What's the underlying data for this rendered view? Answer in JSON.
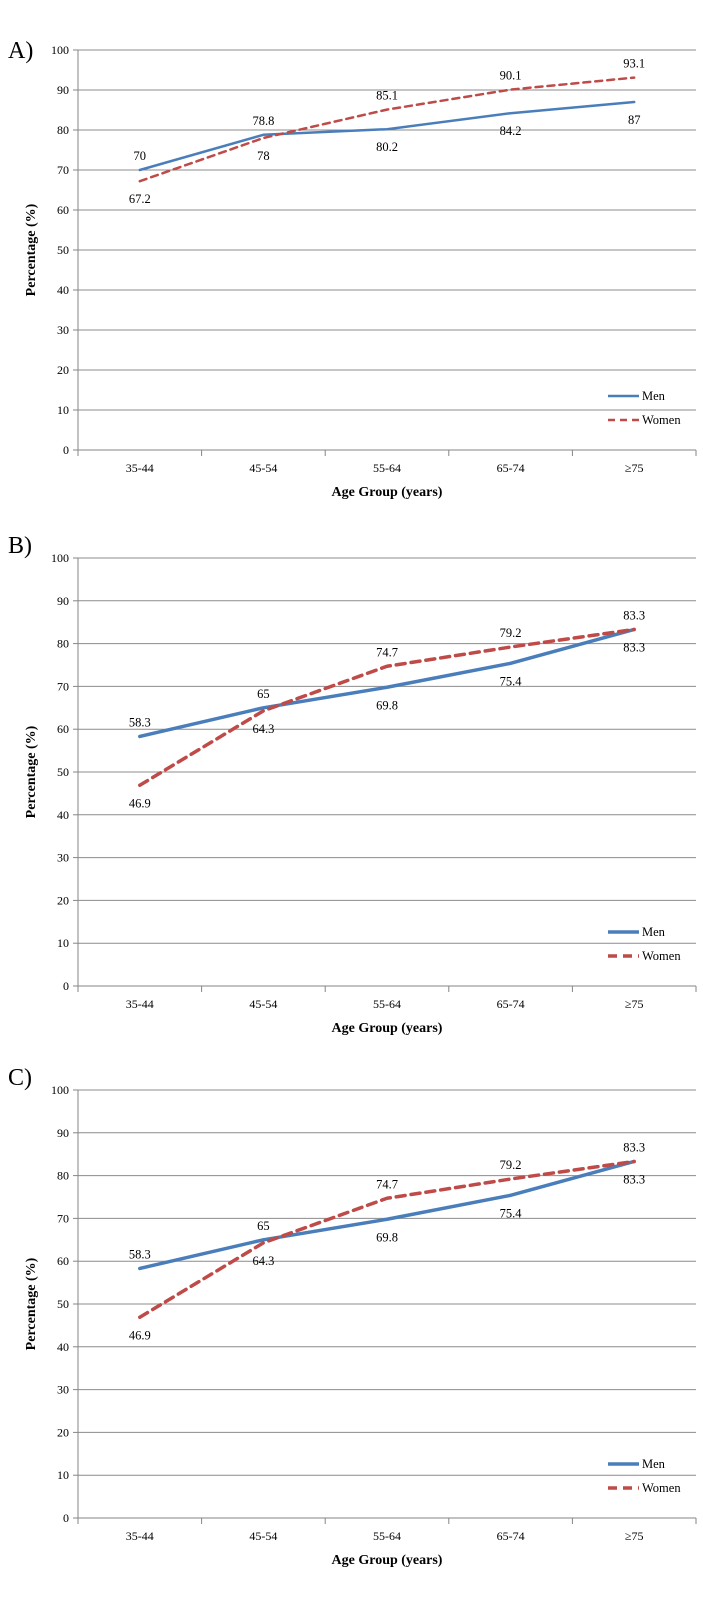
{
  "chart_data": [
    {
      "type": "line",
      "panel_label": "A)",
      "categories": [
        "35-44",
        "45-54",
        "55-64",
        "65-74",
        "≥75"
      ],
      "series": [
        {
          "name": "Men",
          "values": [
            70,
            78.8,
            80.2,
            84.2,
            87
          ],
          "color": "#4a7ebb",
          "style": "solid"
        },
        {
          "name": "Women",
          "values": [
            67.2,
            78,
            85.1,
            90.1,
            93.1
          ],
          "color": "#be4b48",
          "style": "dashed"
        }
      ],
      "labels": [
        "70",
        "78.8",
        "80.2",
        "84.2",
        "87",
        "67.2",
        "78",
        "85.1",
        "90.1",
        "93.1"
      ],
      "ylabel": "Percentage (%)",
      "xlabel": "Age Group (years)",
      "ylim": [
        0,
        100
      ],
      "yticks": [
        "0",
        "10",
        "20",
        "30",
        "40",
        "50",
        "60",
        "70",
        "80",
        "90",
        "100"
      ],
      "grid": true,
      "legend": "bottom-right"
    },
    {
      "type": "line",
      "panel_label": "B)",
      "categories": [
        "35-44",
        "45-54",
        "55-64",
        "65-74",
        "≥75"
      ],
      "series": [
        {
          "name": "Men",
          "values": [
            58.3,
            65,
            69.8,
            75.4,
            83.3
          ],
          "color": "#4a7ebb",
          "style": "solid"
        },
        {
          "name": "Women",
          "values": [
            46.9,
            64.3,
            74.7,
            79.2,
            83.3
          ],
          "color": "#be4b48",
          "style": "dashed"
        }
      ],
      "labels": [
        "58.3",
        "65",
        "69.8",
        "75.4",
        "83.3",
        "46.9",
        "64.3",
        "74.7",
        "79.2",
        "83.3"
      ],
      "ylabel": "Percentage (%)",
      "xlabel": "Age Group (years)",
      "ylim": [
        0,
        100
      ],
      "yticks": [
        "0",
        "10",
        "20",
        "30",
        "40",
        "50",
        "60",
        "70",
        "80",
        "90",
        "100"
      ],
      "grid": true,
      "legend": "bottom-right"
    },
    {
      "type": "line",
      "panel_label": "C)",
      "categories": [
        "35-44",
        "45-54",
        "55-64",
        "65-74",
        "≥75"
      ],
      "series": [
        {
          "name": "Men",
          "values": [
            58.3,
            65,
            69.8,
            75.4,
            83.3
          ],
          "color": "#4a7ebb",
          "style": "solid"
        },
        {
          "name": "Women",
          "values": [
            46.9,
            64.3,
            74.7,
            79.2,
            83.3
          ],
          "color": "#be4b48",
          "style": "dashed"
        }
      ],
      "labels": [
        "58.3",
        "65",
        "69.8",
        "75.4",
        "83.3",
        "46.9",
        "64.3",
        "74.7",
        "79.2",
        "83.3"
      ],
      "ylabel": "Percentage (%)",
      "xlabel": "Age Group (years)",
      "ylim": [
        0,
        100
      ],
      "yticks": [
        "0",
        "10",
        "20",
        "30",
        "40",
        "50",
        "60",
        "70",
        "80",
        "90",
        "100"
      ],
      "grid": true,
      "legend": "bottom-right"
    }
  ]
}
